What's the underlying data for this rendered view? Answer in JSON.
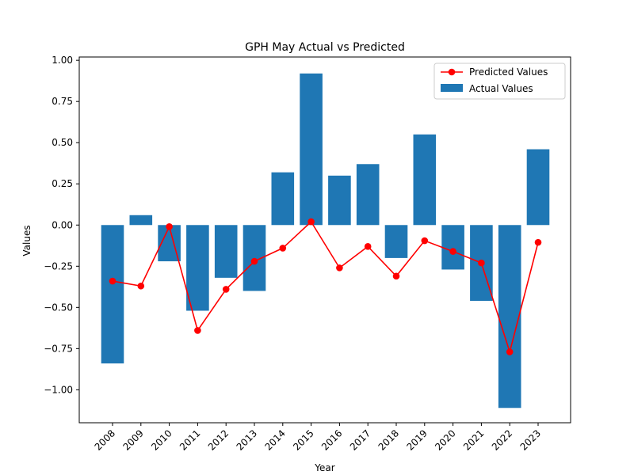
{
  "chart_data": {
    "type": "bar",
    "title": "GPH May Actual vs Predicted",
    "xlabel": "Year",
    "ylabel": "Values",
    "categories": [
      "2008",
      "2009",
      "2010",
      "2011",
      "2012",
      "2013",
      "2014",
      "2015",
      "2016",
      "2017",
      "2018",
      "2019",
      "2020",
      "2021",
      "2022",
      "2023"
    ],
    "ylim": [
      -1.2,
      1.02
    ],
    "yticks": [
      -1.0,
      -0.75,
      -0.5,
      -0.25,
      0.0,
      0.25,
      0.5,
      0.75,
      1.0
    ],
    "ytick_labels": [
      "−1.00",
      "−0.75",
      "−0.50",
      "−0.25",
      "0.00",
      "0.25",
      "0.50",
      "0.75",
      "1.00"
    ],
    "grid": false,
    "legend_position": "top-right",
    "series": [
      {
        "name": "Predicted Values",
        "kind": "line",
        "marker": "circle",
        "color": "#ff0000",
        "values": [
          -0.34,
          -0.37,
          -0.01,
          -0.64,
          -0.39,
          -0.22,
          -0.14,
          0.02,
          -0.26,
          -0.13,
          -0.31,
          -0.095,
          -0.16,
          -0.23,
          -0.77,
          -0.105
        ]
      },
      {
        "name": "Actual Values",
        "kind": "bar",
        "color": "#1f77b4",
        "values": [
          -0.84,
          0.06,
          -0.22,
          -0.52,
          -0.32,
          -0.4,
          0.32,
          0.92,
          0.3,
          0.37,
          -0.2,
          0.55,
          -0.27,
          -0.46,
          -1.11,
          0.46
        ]
      }
    ]
  }
}
